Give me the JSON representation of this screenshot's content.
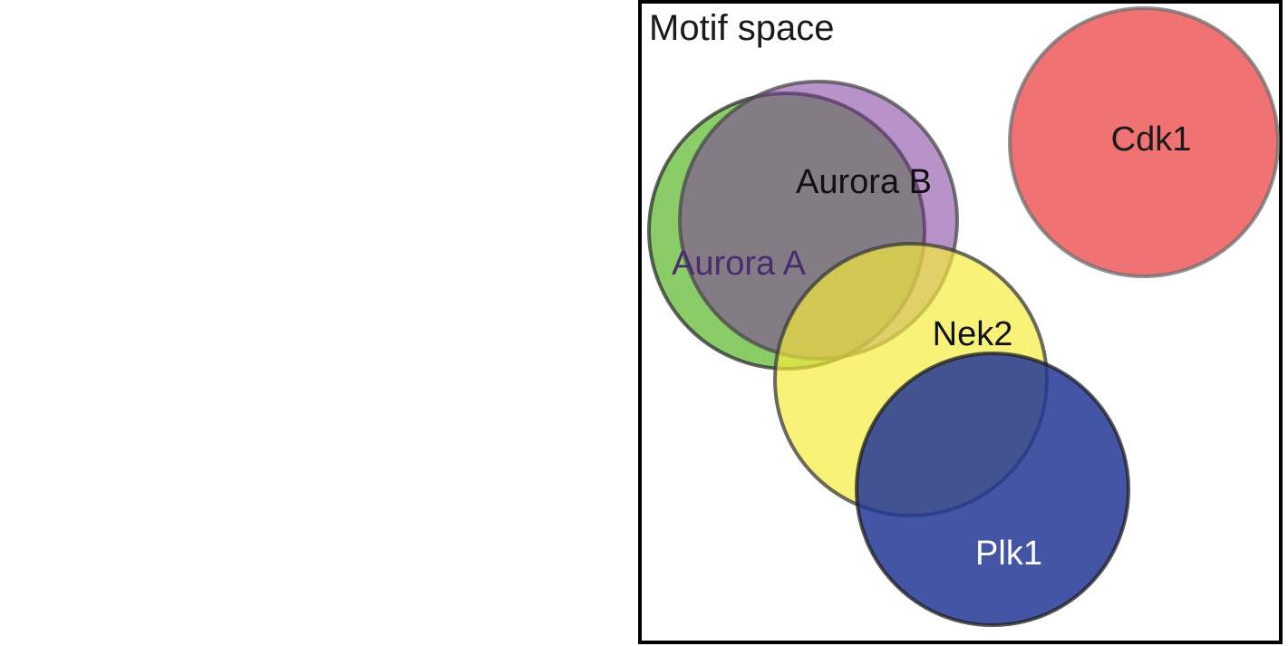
{
  "diagram": {
    "title": "Motif space",
    "sets": [
      {
        "id": "aurora-a",
        "label": "Aurora A",
        "fill": "#5cb82e",
        "fill_opacity": 0.72,
        "stroke": "#2d2d2d",
        "label_color": "#4b2a6e"
      },
      {
        "id": "aurora-b",
        "label": "Aurora B",
        "fill": "#7d3a9c",
        "fill_opacity": 0.55,
        "stroke": "#4a4a4a",
        "label_color": "#111111"
      },
      {
        "id": "nek2",
        "label": "Nek2",
        "fill": "#f4ec3a",
        "fill_opacity": 0.68,
        "stroke": "#3a3a3a",
        "label_color": "#111111"
      },
      {
        "id": "plk1",
        "label": "Plk1",
        "fill": "#233796",
        "fill_opacity": 0.85,
        "stroke": "#1e1e1e",
        "label_color": "#ffffff"
      },
      {
        "id": "cdk1",
        "label": "Cdk1",
        "fill": "#f06a6c",
        "fill_opacity": 0.95,
        "stroke": "#6e6e6e",
        "label_color": "#1a1a1a"
      }
    ]
  }
}
